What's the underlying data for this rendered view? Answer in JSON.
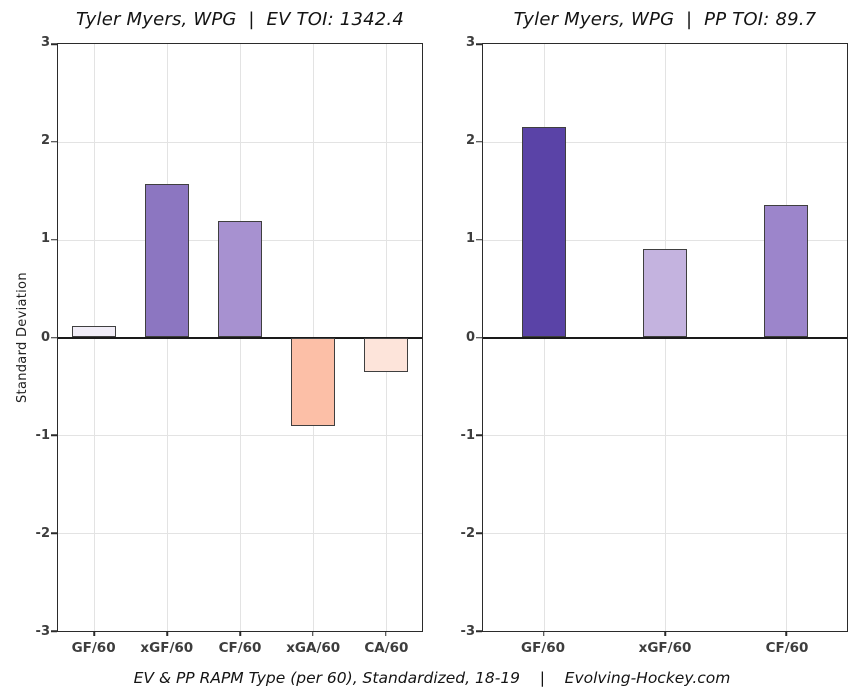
{
  "figure": {
    "footer": "EV & PP RAPM Type (per 60), Standardized, 18-19    |    Evolving-Hockey.com"
  },
  "axis": {
    "grid_color": "#e3e3e3",
    "border_color": "#2b2b2b",
    "zero_line_color": "#1a1a1a",
    "tick_color": "#3d3d3d"
  },
  "chart_data": [
    {
      "type": "bar",
      "title": "Tyler Myers, WPG  |  EV TOI: 1342.4",
      "xlabel": "",
      "ylabel": "Standard Deviation",
      "ylim": [
        -3,
        3
      ],
      "yticks": [
        3,
        2,
        1,
        0,
        -1,
        -2,
        -3
      ],
      "grid": true,
      "legend": "none",
      "categories": [
        "GF/60",
        "xGF/60",
        "CF/60",
        "xGA/60",
        "CA/60"
      ],
      "values": [
        0.12,
        1.57,
        1.19,
        -0.9,
        -0.35
      ],
      "bar_colors": [
        "#f1edf7",
        "#8c76c1",
        "#a791d0",
        "#fcbfa7",
        "#fde4da"
      ]
    },
    {
      "type": "bar",
      "title": "Tyler Myers, WPG  |  PP TOI: 89.7",
      "xlabel": "",
      "ylabel": "",
      "ylim": [
        -3,
        3
      ],
      "yticks": [
        3,
        2,
        1,
        0,
        -1,
        -2,
        -3
      ],
      "grid": true,
      "legend": "none",
      "categories": [
        "GF/60",
        "xGF/60",
        "CF/60"
      ],
      "values": [
        2.15,
        0.9,
        1.35
      ],
      "bar_colors": [
        "#5a43a7",
        "#c4b3df",
        "#9c85cb"
      ]
    }
  ]
}
